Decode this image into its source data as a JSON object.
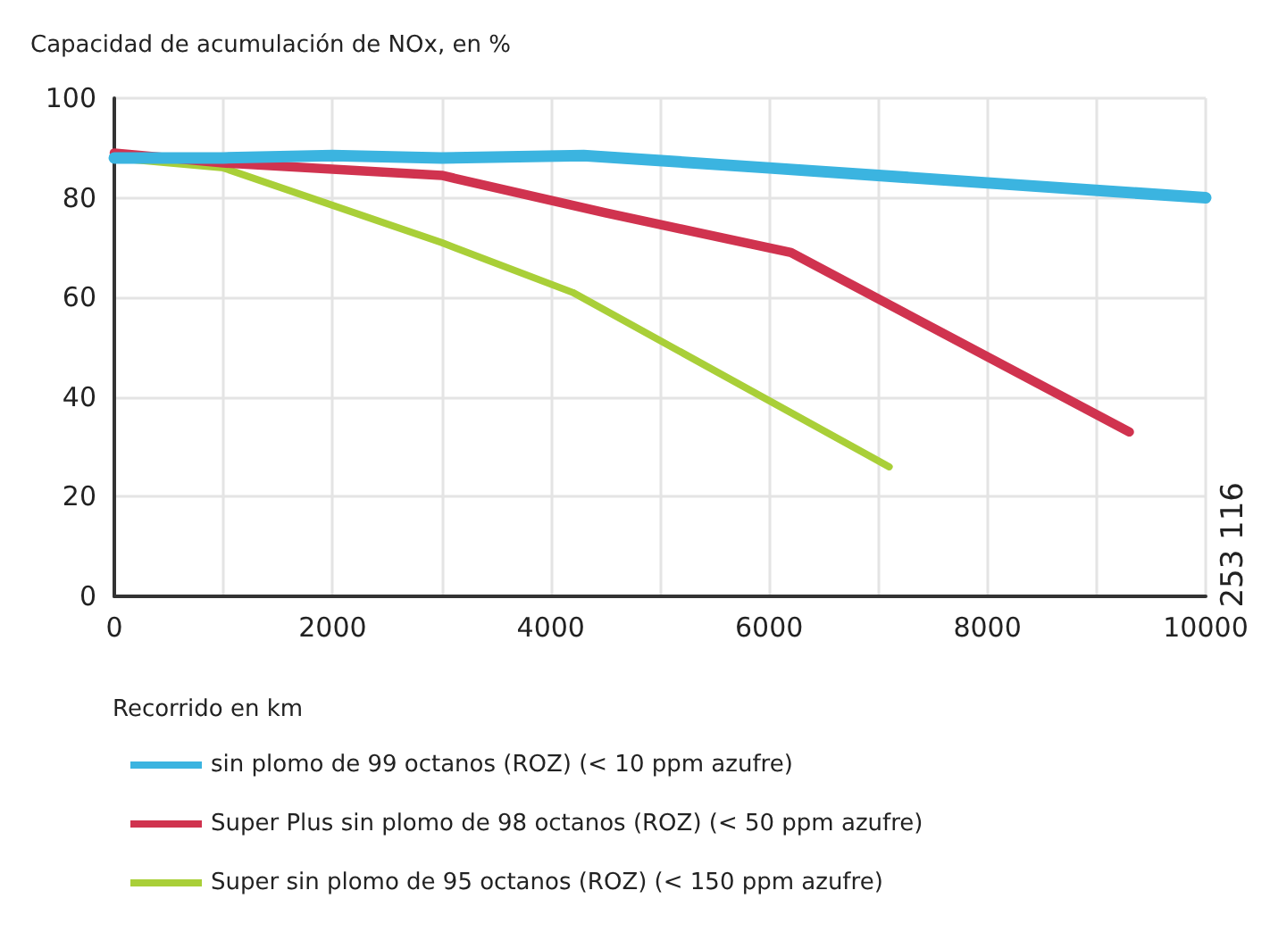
{
  "chart_data": {
    "type": "line",
    "ylabel": "Capacidad de acumulación de NOx, en %",
    "xlabel": "Recorrido en km",
    "xlim": [
      0,
      10000
    ],
    "xticks": [
      0,
      {
        "value": 1000,
        "label": null
      },
      2000,
      {
        "value": 3000,
        "label": null
      },
      4000,
      {
        "value": 5000,
        "label": null
      },
      6000,
      {
        "value": 7000,
        "label": null
      },
      8000,
      {
        "value": 9000,
        "label": null
      },
      10000
    ],
    "ylim": [
      0,
      100
    ],
    "yticks": [
      0,
      20,
      40,
      60,
      80,
      100
    ],
    "grid": true,
    "legend": "bottom",
    "marker": "none",
    "line_style": "solid",
    "annotations": [
      "253 116"
    ],
    "series": [
      {
        "name": "sin plomo de 99 octanos (ROZ) (< 10 ppm azufre)",
        "color": "#3bb4e0",
        "x": [
          0,
          1000,
          2000,
          3000,
          4300,
          6000,
          8000,
          10000
        ],
        "values": [
          88,
          88,
          88.5,
          88,
          88.5,
          86,
          83,
          80
        ]
      },
      {
        "name": "Super Plus sin plomo de 98 octanos (ROZ) (< 50 ppm azufre)",
        "color": "#d0334f",
        "x": [
          0,
          1000,
          3000,
          4500,
          6200,
          9300
        ],
        "values": [
          89,
          87,
          84.5,
          77,
          69,
          33
        ]
      },
      {
        "name": "Super sin plomo de 95 octanos (ROZ) (< 150 ppm azufre)",
        "color": "#a9cf38",
        "x": [
          0,
          1000,
          3000,
          4200,
          7100
        ],
        "values": [
          88,
          86,
          71,
          61,
          26
        ]
      }
    ]
  }
}
